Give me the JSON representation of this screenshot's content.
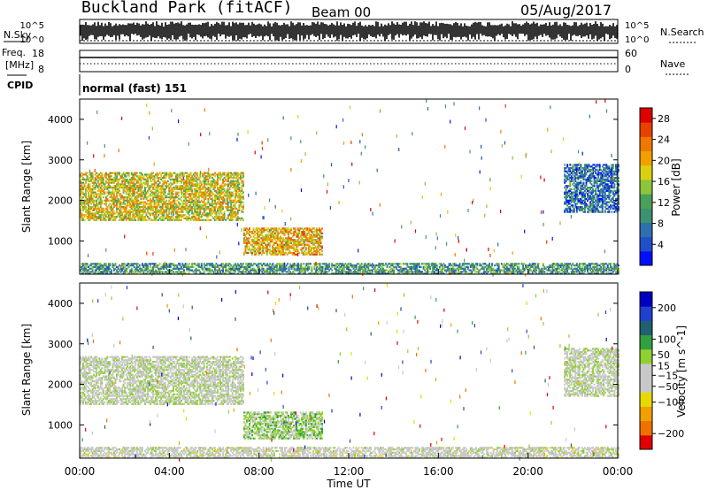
{
  "header": {
    "station": "Buckland Park (fitACF)",
    "beam": "Beam 00",
    "date": "05/Aug/2017"
  },
  "labels": {
    "nsky": "N.Sky",
    "nsearch": "N.Search",
    "freq": "Freq.",
    "mhz": "[MHz]",
    "nave": "Nave",
    "cpid": "CPID",
    "cpid_value": "normal (fast) 151",
    "x_axis": "Time UT",
    "y_axis": "Slant Range [km]",
    "noise_left_ticks": [
      "10^5",
      "10^0"
    ],
    "noise_right_ticks": [
      "10^5",
      "10^0"
    ],
    "freq_ticks": [
      "18",
      "8"
    ],
    "nave_ticks": [
      "60",
      "0"
    ]
  },
  "colors": {
    "power_scale": [
      "#0010ff",
      "#2050c8",
      "#2e6fb0",
      "#3d9070",
      "#4aa058",
      "#8cc43c",
      "#d8d010",
      "#f0a000",
      "#f07800",
      "#e84000",
      "#e00000"
    ],
    "velocity_scale": [
      "#e00000",
      "#f07000",
      "#f0a000",
      "#e8d800",
      "#c8c8c8",
      "#c8c8c8",
      "#90d030",
      "#30a040",
      "#206070",
      "#2040d0",
      "#0000c0"
    ]
  },
  "chart_data": [
    {
      "type": "heatmap",
      "title": "",
      "quantity": "Power [dB]",
      "xlabel": "Time UT",
      "ylabel": "Slant Range [km]",
      "x_ticks": [
        "00:00",
        "04:00",
        "08:00",
        "12:00",
        "16:00",
        "20:00",
        "00:00"
      ],
      "y_ticks": [
        1000,
        2000,
        3000,
        4000
      ],
      "xlim_hours": [
        0,
        24
      ],
      "ylim_km": [
        180,
        4500
      ],
      "colorbar_ticks": [
        4,
        8,
        12,
        16,
        20,
        24,
        28
      ],
      "colorbar_range": [
        0,
        30
      ],
      "regions": [
        {
          "t0": 0.0,
          "t1": 7.3,
          "r0": 1500,
          "r1": 2700,
          "level": 18
        },
        {
          "t0": 7.3,
          "t1": 10.8,
          "r0": 650,
          "r1": 1300,
          "level": 20
        },
        {
          "t0": 21.6,
          "t1": 24.0,
          "r0": 1700,
          "r1": 2900,
          "level": 6
        },
        {
          "t0": 0.0,
          "t1": 24.0,
          "r0": 180,
          "r1": 450,
          "level": 10
        }
      ]
    },
    {
      "type": "heatmap",
      "title": "",
      "quantity": "Velocity [m s^-1]",
      "xlabel": "Time UT",
      "ylabel": "Slant Range [km]",
      "x_ticks": [
        "00:00",
        "04:00",
        "08:00",
        "12:00",
        "16:00",
        "20:00",
        "00:00"
      ],
      "y_ticks": [
        1000,
        2000,
        3000,
        4000
      ],
      "xlim_hours": [
        0,
        24
      ],
      "ylim_km": [
        180,
        4500
      ],
      "colorbar_ticks": [
        200,
        100,
        50,
        15,
        -15,
        -50,
        -100,
        -200
      ],
      "colorbar_range": [
        -250,
        250
      ],
      "regions": [
        {
          "t0": 0.0,
          "t1": 7.3,
          "r0": 1500,
          "r1": 2700,
          "level": 0
        },
        {
          "t0": 7.3,
          "t1": 10.8,
          "r0": 650,
          "r1": 1300,
          "level": 40
        },
        {
          "t0": 21.6,
          "t1": 24.0,
          "r0": 1700,
          "r1": 2900,
          "level": 0
        },
        {
          "t0": 0.0,
          "t1": 24.0,
          "r0": 180,
          "r1": 450,
          "level": -20
        }
      ]
    }
  ]
}
